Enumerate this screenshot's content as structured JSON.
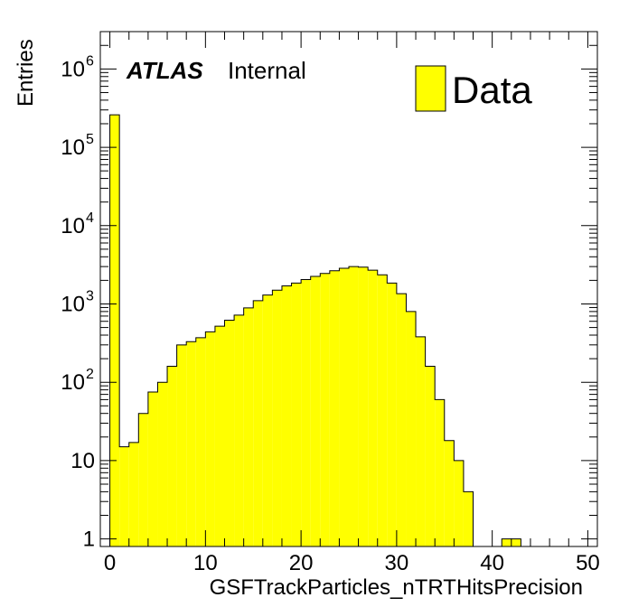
{
  "chart_data": {
    "type": "bar",
    "xlabel": "GSFTrackParticles_nTRTHitsPrecision",
    "ylabel": "Entries",
    "xlim": [
      -1,
      51
    ],
    "ylim": [
      0.8,
      3000000
    ],
    "yscale": "log",
    "grid": false,
    "legend": {
      "position": "top-right",
      "entries": [
        "Data"
      ]
    },
    "annotations": {
      "experiment": "ATLAS",
      "status": "Internal"
    },
    "x_ticks": [
      "0",
      "10",
      "20",
      "30",
      "40",
      "50"
    ],
    "y_ticks": [
      {
        "value": 1,
        "base": "1",
        "exp": ""
      },
      {
        "value": 10,
        "base": "10",
        "exp": ""
      },
      {
        "value": 100,
        "base": "10",
        "exp": "2"
      },
      {
        "value": 1000,
        "base": "10",
        "exp": "3"
      },
      {
        "value": 10000,
        "base": "10",
        "exp": "4"
      },
      {
        "value": 100000,
        "base": "10",
        "exp": "5"
      },
      {
        "value": 1000000,
        "base": "10",
        "exp": "6"
      }
    ],
    "series": [
      {
        "name": "Data",
        "color": "#ffff00",
        "bin_width": 1,
        "bin_low_edges": [
          -1,
          0,
          1,
          2,
          3,
          4,
          5,
          6,
          7,
          8,
          9,
          10,
          11,
          12,
          13,
          14,
          15,
          16,
          17,
          18,
          19,
          20,
          21,
          22,
          23,
          24,
          25,
          26,
          27,
          28,
          29,
          30,
          31,
          32,
          33,
          34,
          35,
          36,
          37,
          38,
          39,
          40,
          41,
          42,
          43,
          44,
          45,
          46,
          47,
          48,
          49,
          50
        ],
        "values": [
          0,
          260000,
          15,
          17,
          40,
          75,
          100,
          160,
          300,
          330,
          370,
          440,
          520,
          620,
          720,
          890,
          1100,
          1300,
          1500,
          1700,
          1850,
          2050,
          2250,
          2450,
          2650,
          2850,
          3000,
          2950,
          2700,
          2350,
          1850,
          1350,
          800,
          380,
          160,
          60,
          18,
          10,
          4,
          0,
          0,
          0,
          1,
          1,
          0,
          0,
          0,
          0,
          0,
          0,
          0,
          0
        ]
      }
    ]
  }
}
